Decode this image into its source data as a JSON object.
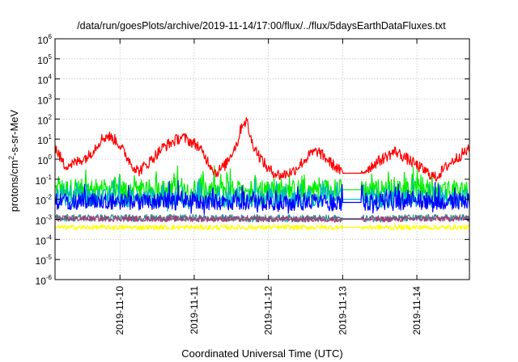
{
  "chart_data": {
    "type": "line",
    "title": "/data/run/goesPlots/archive/2019-11-14/17:00/flux/../flux/5daysEarthDataFluxes.txt",
    "xlabel": "Coordinated Universal Time (UTC)",
    "ylabel": {
      "base": "protons/cm",
      "sup": "2",
      "rest": "-s-sr-MeV"
    },
    "yscale": "log",
    "ylim": [
      1e-06,
      1000000.0
    ],
    "xlim": [
      "2019-11-09T03:00",
      "2019-11-14T17:00"
    ],
    "grid": true,
    "y_ticks": [
      {
        "base": "10",
        "exp": "-6",
        "value": 1e-06
      },
      {
        "base": "10",
        "exp": "-5",
        "value": 1e-05
      },
      {
        "base": "10",
        "exp": "-4",
        "value": 0.0001
      },
      {
        "base": "10",
        "exp": "-3",
        "value": 0.001
      },
      {
        "base": "10",
        "exp": "-2",
        "value": 0.01
      },
      {
        "base": "10",
        "exp": "-1",
        "value": 0.1
      },
      {
        "base": "10",
        "exp": "0",
        "value": 1.0
      },
      {
        "base": "10",
        "exp": "1",
        "value": 10.0
      },
      {
        "base": "10",
        "exp": "2",
        "value": 100.0
      },
      {
        "base": "10",
        "exp": "3",
        "value": 1000.0
      },
      {
        "base": "10",
        "exp": "4",
        "value": 10000.0
      },
      {
        "base": "10",
        "exp": "5",
        "value": 100000.0
      },
      {
        "base": "10",
        "exp": "6",
        "value": 1000000.0
      }
    ],
    "x_ticks": [
      {
        "label": "2019-11-10",
        "value": "2019-11-10T00:00"
      },
      {
        "label": "2019-11-11",
        "value": "2019-11-11T00:00"
      },
      {
        "label": "2019-11-12",
        "value": "2019-11-12T00:00"
      },
      {
        "label": "2019-11-13",
        "value": "2019-11-13T00:00"
      },
      {
        "label": "2019-11-14",
        "value": "2019-11-14T00:00"
      }
    ],
    "data_gap": [
      "2019-11-13T00:00",
      "2019-11-13T06:00"
    ],
    "series": [
      {
        "color": "#ff0000",
        "noise": 0.28,
        "spiky": false,
        "points": [
          [
            "2019-11-09T03:00",
            4
          ],
          [
            "2019-11-09T06:00",
            0.5
          ],
          [
            "2019-11-09T09:00",
            0.6
          ],
          [
            "2019-11-09T14:00",
            1.5
          ],
          [
            "2019-11-09T18:00",
            10
          ],
          [
            "2019-11-09T20:00",
            15
          ],
          [
            "2019-11-09T23:00",
            8
          ],
          [
            "2019-11-10T04:00",
            0.5
          ],
          [
            "2019-11-10T06:00",
            0.25
          ],
          [
            "2019-11-10T09:00",
            0.6
          ],
          [
            "2019-11-10T14:00",
            4
          ],
          [
            "2019-11-10T20:00",
            13
          ],
          [
            "2019-11-11T01:00",
            5
          ],
          [
            "2019-11-11T05:00",
            0.6
          ],
          [
            "2019-11-11T07:00",
            0.2
          ],
          [
            "2019-11-11T10:00",
            0.5
          ],
          [
            "2019-11-11T14:00",
            7
          ],
          [
            "2019-11-11T15:30",
            60
          ],
          [
            "2019-11-11T17:00",
            80
          ],
          [
            "2019-11-11T18:30",
            8
          ],
          [
            "2019-11-11T21:00",
            1.5
          ],
          [
            "2019-11-12T00:00",
            0.3
          ],
          [
            "2019-11-12T04:00",
            0.15
          ],
          [
            "2019-11-12T08:00",
            0.25
          ],
          [
            "2019-11-12T14:00",
            2
          ],
          [
            "2019-11-12T16:00",
            2.5
          ],
          [
            "2019-11-12T20:00",
            0.7
          ],
          [
            "2019-11-13T00:00",
            0.2
          ],
          [
            "2019-11-13T06:00",
            0.2
          ],
          [
            "2019-11-13T11:00",
            0.7
          ],
          [
            "2019-11-13T17:00",
            2.5
          ],
          [
            "2019-11-13T22:00",
            0.8
          ],
          [
            "2019-11-14T02:00",
            0.3
          ],
          [
            "2019-11-14T06:00",
            0.12
          ],
          [
            "2019-11-14T11:00",
            0.7
          ],
          [
            "2019-11-14T15:00",
            2
          ],
          [
            "2019-11-14T17:00",
            3
          ]
        ]
      },
      {
        "color": "#00ee00",
        "noise": 0.55,
        "spiky": true,
        "points": [
          [
            "2019-11-09T03:00",
            0.03
          ],
          [
            "2019-11-11T12:00",
            0.025
          ],
          [
            "2019-11-13T00:00",
            0.03
          ],
          [
            "2019-11-13T06:00",
            0.03
          ],
          [
            "2019-11-14T17:00",
            0.025
          ]
        ]
      },
      {
        "color": "#00b4c8",
        "noise": 0.45,
        "spiky": true,
        "points": [
          [
            "2019-11-09T03:00",
            0.012
          ],
          [
            "2019-11-13T00:00",
            0.01
          ],
          [
            "2019-11-13T06:00",
            0.01
          ],
          [
            "2019-11-14T17:00",
            0.012
          ]
        ]
      },
      {
        "color": "#0000ff",
        "noise": 0.42,
        "spiky": true,
        "points": [
          [
            "2019-11-09T03:00",
            0.008
          ],
          [
            "2019-11-13T00:00",
            0.007
          ],
          [
            "2019-11-13T06:00",
            0.007
          ],
          [
            "2019-11-14T17:00",
            0.008
          ]
        ]
      },
      {
        "color": "#ffff00",
        "noise": 0.12,
        "spiky": false,
        "points": [
          [
            "2019-11-09T03:00",
            0.0004
          ],
          [
            "2019-11-13T00:00",
            0.0004
          ],
          [
            "2019-11-13T06:00",
            0.0004
          ],
          [
            "2019-11-14T17:00",
            0.0004
          ]
        ]
      },
      {
        "color": "#2e8b8b",
        "noise": 0.18,
        "spiky": false,
        "points": [
          [
            "2019-11-09T03:00",
            0.0012
          ],
          [
            "2019-11-13T00:00",
            0.0011
          ],
          [
            "2019-11-13T06:00",
            0.0011
          ],
          [
            "2019-11-14T17:00",
            0.0012
          ]
        ]
      },
      {
        "color": "#a0407a",
        "noise": 0.14,
        "spiky": false,
        "points": [
          [
            "2019-11-09T03:00",
            0.0011
          ],
          [
            "2019-11-13T00:00",
            0.001
          ],
          [
            "2019-11-13T06:00",
            0.001
          ],
          [
            "2019-11-14T17:00",
            0.0011
          ]
        ]
      }
    ]
  }
}
